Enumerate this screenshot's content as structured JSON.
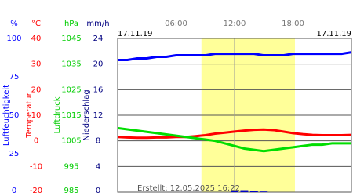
{
  "chart_data": {
    "type": "line",
    "date_left": "17.11.19",
    "date_right": "17.11.19",
    "created": "Erstellt: 12.05.2025 16:22",
    "xlim": [
      0,
      24
    ],
    "xticks": [
      {
        "value": 6,
        "label": "06:00"
      },
      {
        "value": 12,
        "label": "12:00"
      },
      {
        "value": 18,
        "label": "18:00"
      }
    ],
    "daylight": [
      8.6,
      18.2
    ],
    "daylight_color": "#ffff99",
    "y_axes": [
      {
        "name": "Luftfeuchtigkeit",
        "unit": "%",
        "color": "#0000ff",
        "lim": [
          0,
          100
        ],
        "ticks": [
          0,
          25,
          50,
          75,
          100
        ]
      },
      {
        "name": "Temperatur",
        "unit": "°C",
        "color": "#ff0000",
        "lim": [
          -20,
          40
        ],
        "ticks": [
          -20,
          -10,
          0,
          10,
          20,
          30,
          40
        ]
      },
      {
        "name": "Luftdruck",
        "unit": "hPa",
        "color": "#00cc00",
        "lim": [
          985,
          1045
        ],
        "ticks": [
          985,
          995,
          1005,
          1015,
          1025,
          1035,
          1045
        ]
      },
      {
        "name": "Niederschlag",
        "unit": "mm/h",
        "color": "#000080",
        "lim": [
          0,
          24
        ],
        "ticks": [
          0,
          4,
          8,
          12,
          16,
          20,
          24
        ]
      }
    ],
    "x": [
      0,
      1,
      2,
      3,
      4,
      5,
      6,
      7,
      8,
      9,
      10,
      11,
      12,
      13,
      14,
      15,
      16,
      17,
      18,
      19,
      20,
      21,
      22,
      23,
      24
    ],
    "series": [
      {
        "axis": 0,
        "kind": "line",
        "color": "#0000ff",
        "values": [
          86,
          86,
          87,
          87,
          88,
          88,
          89,
          89,
          89,
          89,
          90,
          90,
          90,
          90,
          90,
          89,
          89,
          89,
          90,
          90,
          90,
          90,
          90,
          90,
          91
        ]
      },
      {
        "axis": 1,
        "kind": "line",
        "color": "#ff0000",
        "values": [
          1.5,
          1.3,
          1.2,
          1.2,
          1.3,
          1.3,
          1.5,
          1.5,
          1.8,
          2.2,
          2.8,
          3.2,
          3.6,
          4.0,
          4.3,
          4.4,
          4.2,
          3.6,
          3.0,
          2.6,
          2.3,
          2.2,
          2.2,
          2.2,
          2.3
        ]
      },
      {
        "axis": 2,
        "kind": "line",
        "color": "#00dd00",
        "values": [
          1010,
          1009.5,
          1009,
          1008.5,
          1008,
          1007.5,
          1007,
          1006.5,
          1006,
          1005.5,
          1005,
          1004,
          1003,
          1002,
          1001.5,
          1001,
          1001.5,
          1002,
          1002.5,
          1003,
          1003.5,
          1003.5,
          1004,
          1004,
          1004
        ]
      },
      {
        "axis": 3,
        "kind": "bar",
        "color": "#0000cc",
        "values": [
          0,
          0,
          0,
          0,
          0,
          0,
          0,
          0,
          0,
          0,
          0,
          0,
          0.2,
          0.3,
          0.2,
          0.1,
          0,
          0,
          0,
          0,
          0,
          0,
          0,
          0,
          0
        ]
      }
    ]
  }
}
